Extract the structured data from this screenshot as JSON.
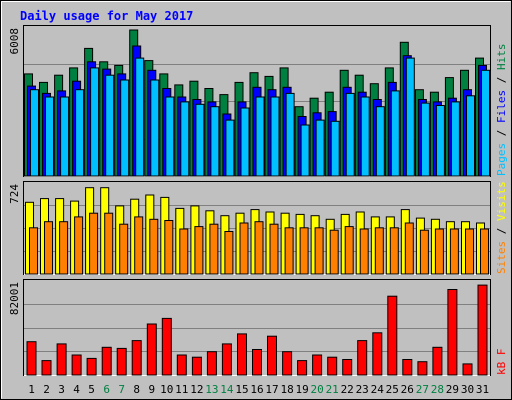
{
  "chart_data": [
    {
      "type": "bar",
      "title": "Daily usage for May 2017",
      "panel": "hits-files-pages",
      "categories": [
        "1",
        "2",
        "3",
        "4",
        "5",
        "6",
        "7",
        "8",
        "9",
        "10",
        "11",
        "12",
        "13",
        "14",
        "15",
        "16",
        "17",
        "18",
        "19",
        "20",
        "21",
        "22",
        "23",
        "24",
        "25",
        "26",
        "27",
        "28",
        "29",
        "30",
        "31"
      ],
      "weekend_days": [
        "6",
        "7",
        "13",
        "14",
        "20",
        "21",
        "27",
        "28"
      ],
      "ylim": [
        0,
        6008
      ],
      "max_label": "6008",
      "legend": {
        "pages": "Pages",
        "files": "Files",
        "hits": "Hits",
        "separator": " / "
      },
      "series": [
        {
          "name": "Hits",
          "color": "#008040",
          "values": [
            4200,
            3850,
            4150,
            4450,
            5250,
            4700,
            4550,
            6008,
            4750,
            4200,
            3750,
            3900,
            3600,
            3350,
            3850,
            4250,
            4100,
            4450,
            2850,
            3200,
            3450,
            4350,
            4150,
            3800,
            4450,
            5500,
            3550,
            3450,
            4050,
            4350,
            4850
          ]
        },
        {
          "name": "Files",
          "color": "#0000ff",
          "values": [
            3700,
            3400,
            3500,
            3900,
            4700,
            4400,
            4200,
            5350,
            4350,
            3600,
            3250,
            3150,
            3050,
            2550,
            3050,
            3650,
            3550,
            3650,
            2450,
            2600,
            2650,
            3650,
            3450,
            3150,
            3850,
            4950,
            3150,
            3050,
            3200,
            3550,
            4550
          ]
        },
        {
          "name": "Pages",
          "color": "#00c0ff",
          "values": [
            3550,
            3250,
            3250,
            3550,
            4450,
            4150,
            3950,
            4850,
            3950,
            3250,
            3050,
            2950,
            2850,
            2300,
            2800,
            3250,
            3250,
            3400,
            2100,
            2300,
            2250,
            3400,
            3250,
            2850,
            3500,
            4850,
            3000,
            2900,
            3050,
            3300,
            4350
          ]
        }
      ]
    },
    {
      "type": "bar",
      "panel": "visits-sites",
      "categories": [
        "1",
        "2",
        "3",
        "4",
        "5",
        "6",
        "7",
        "8",
        "9",
        "10",
        "11",
        "12",
        "13",
        "14",
        "15",
        "16",
        "17",
        "18",
        "19",
        "20",
        "21",
        "22",
        "23",
        "24",
        "25",
        "26",
        "27",
        "28",
        "29",
        "30",
        "31"
      ],
      "ylim": [
        0,
        724
      ],
      "max_label": "724",
      "legend": {
        "sites": "Sites",
        "visits": "Visits",
        "separator": " / "
      },
      "series": [
        {
          "name": "Visits",
          "color": "#ffff00",
          "values": [
            590,
            620,
            620,
            600,
            710,
            710,
            560,
            615,
            650,
            630,
            540,
            560,
            520,
            480,
            500,
            530,
            510,
            500,
            490,
            480,
            450,
            490,
            510,
            470,
            470,
            530,
            460,
            450,
            430,
            430,
            420
          ]
        },
        {
          "name": "Sites",
          "color": "#ff8000",
          "values": [
            380,
            430,
            430,
            470,
            500,
            500,
            410,
            470,
            450,
            440,
            370,
            390,
            410,
            350,
            420,
            430,
            410,
            380,
            380,
            380,
            360,
            390,
            370,
            380,
            380,
            420,
            360,
            370,
            370,
            370,
            370
          ]
        }
      ]
    },
    {
      "type": "bar",
      "panel": "kbytes",
      "categories": [
        "1",
        "2",
        "3",
        "4",
        "5",
        "6",
        "7",
        "8",
        "9",
        "10",
        "11",
        "12",
        "13",
        "14",
        "15",
        "16",
        "17",
        "18",
        "19",
        "20",
        "21",
        "22",
        "23",
        "24",
        "25",
        "26",
        "27",
        "28",
        "29",
        "30",
        "31"
      ],
      "ylim": [
        0,
        82001
      ],
      "max_label": "82001",
      "legend": {
        "kbytes": "kB F"
      },
      "series": [
        {
          "name": "kB F",
          "color": "#ff0000",
          "values": [
            30000,
            13000,
            28000,
            18000,
            15000,
            25000,
            24000,
            31000,
            46000,
            51000,
            18000,
            16000,
            21000,
            28000,
            37000,
            23000,
            35000,
            21000,
            13000,
            18000,
            16000,
            14000,
            31000,
            38000,
            71000,
            14000,
            12000,
            25000,
            77000,
            10000,
            81000
          ]
        }
      ]
    }
  ]
}
